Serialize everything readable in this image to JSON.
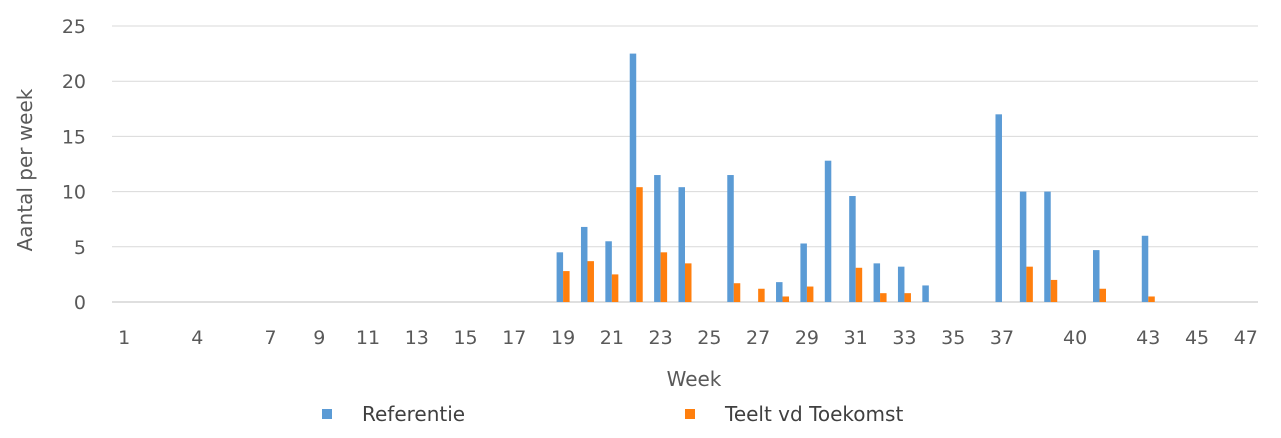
{
  "chart_data": {
    "type": "bar",
    "xlabel": "Week",
    "ylabel": "Aantal per week",
    "ylim": [
      0,
      25
    ],
    "yticks": [
      "0",
      "5",
      "10",
      "15",
      "20",
      "25"
    ],
    "categories": [
      "1",
      "2",
      "3",
      "4",
      "5",
      "6",
      "7",
      "8",
      "9",
      "10",
      "11",
      "12",
      "13",
      "14",
      "15",
      "16",
      "17",
      "18",
      "19",
      "20",
      "21",
      "22",
      "23",
      "24",
      "25",
      "26",
      "27",
      "28",
      "29",
      "30",
      "31",
      "32",
      "33",
      "34",
      "35",
      "36",
      "37",
      "38",
      "39",
      "40",
      "41",
      "42",
      "43",
      "44",
      "45",
      "46",
      "47"
    ],
    "tick_labels": [
      "1",
      "4",
      "7",
      "9",
      "11",
      "13",
      "15",
      "17",
      "19",
      "21",
      "23",
      "25",
      "27",
      "29",
      "31",
      "33",
      "35",
      "37",
      "40",
      "43",
      "45",
      "47"
    ],
    "grid": true,
    "legend_position": "bottom",
    "series": [
      {
        "name": "Referentie",
        "color": "#5B9BD5",
        "values": [
          0,
          0,
          0,
          0,
          0,
          0,
          0,
          0,
          0,
          0,
          0,
          0,
          0,
          0,
          0,
          0,
          0,
          0,
          4.5,
          6.8,
          5.5,
          22.5,
          11.5,
          10.4,
          0,
          11.5,
          0,
          1.8,
          5.3,
          12.8,
          9.6,
          3.5,
          3.2,
          1.5,
          0,
          0,
          17.0,
          10.0,
          10.0,
          0,
          4.7,
          0,
          6.0,
          0,
          0,
          0,
          0
        ]
      },
      {
        "name": "Teelt vd Toekomst",
        "color": "#FF7F0E",
        "values": [
          0,
          0,
          0,
          0,
          0,
          0,
          0,
          0,
          0,
          0,
          0,
          0,
          0,
          0,
          0,
          0,
          0,
          0,
          2.8,
          3.7,
          2.5,
          10.4,
          4.5,
          3.5,
          0,
          1.7,
          1.2,
          0.5,
          1.4,
          0,
          3.1,
          0.8,
          0.8,
          0,
          0,
          0,
          0,
          3.2,
          2.0,
          0,
          1.2,
          0,
          0.5,
          0,
          0,
          0,
          0
        ]
      }
    ]
  }
}
